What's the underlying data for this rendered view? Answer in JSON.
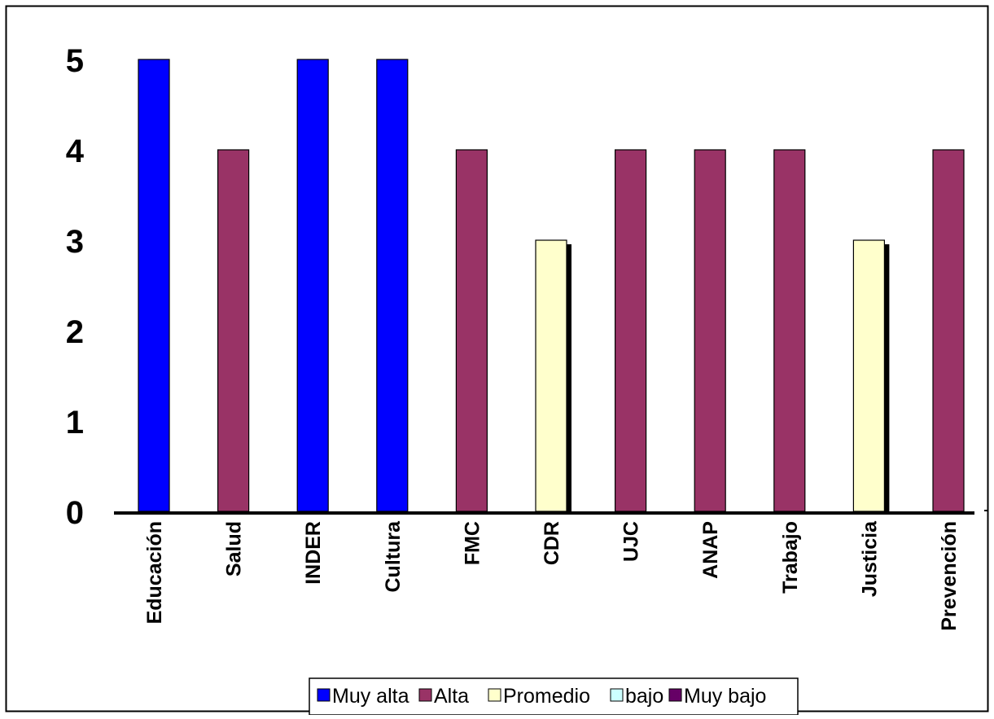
{
  "chart_data": {
    "type": "bar",
    "categories": [
      "Educación",
      "Salud",
      "INDER",
      "Cultura",
      "FMC",
      "CDR",
      "UJC",
      "ANAP",
      "Trabajo",
      "Justicia",
      "Prevención"
    ],
    "values": [
      5,
      4,
      5,
      5,
      4,
      3,
      4,
      4,
      4,
      3,
      4
    ],
    "levels": [
      "Muy alta",
      "Alta",
      "Muy alta",
      "Muy alta",
      "Alta",
      "Promedio",
      "Alta",
      "Alta",
      "Alta",
      "Promedio",
      "Alta"
    ],
    "ylim": [
      0,
      5
    ],
    "yticks": [
      0,
      1,
      2,
      3,
      4,
      5
    ],
    "grid": false,
    "legend": {
      "placement": "bottom-center",
      "entries": [
        {
          "label": "Muy alta",
          "color": "#0000ff"
        },
        {
          "label": "Alta",
          "color": "#993366"
        },
        {
          "label": "Promedio",
          "color": "#ffffcc"
        },
        {
          "label": "bajo",
          "color": "#ccffff"
        },
        {
          "label": "Muy bajo",
          "color": "#660066"
        }
      ]
    },
    "colors": {
      "Muy alta": "#0000ff",
      "Alta": "#993366",
      "Promedio": "#ffffcc"
    }
  }
}
